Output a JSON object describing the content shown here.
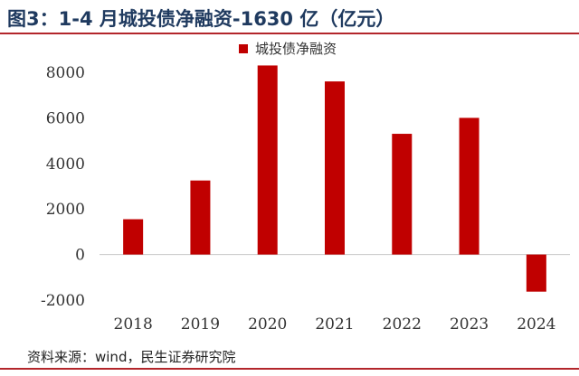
{
  "header": {
    "title": "图3：1-4 月城投债净融资-1630 亿（亿元）"
  },
  "footer": {
    "source": "资料来源：wind，民生证券研究院"
  },
  "chart_data": {
    "type": "bar",
    "title": "图3：1-4 月城投债净融资-1630 亿（亿元）",
    "categories": [
      "2018",
      "2019",
      "2020",
      "2021",
      "2022",
      "2023",
      "2024"
    ],
    "series": [
      {
        "name": "城投债净融资",
        "values": [
          1550,
          3250,
          8300,
          7600,
          5300,
          6000,
          -1630
        ],
        "color": "#c00000"
      }
    ],
    "ylim": [
      -2000,
      8000
    ],
    "yticks": [
      8000,
      6000,
      4000,
      2000,
      0,
      -2000
    ],
    "xlabel": "",
    "ylabel": "",
    "legend": "top-center",
    "grid": false
  }
}
